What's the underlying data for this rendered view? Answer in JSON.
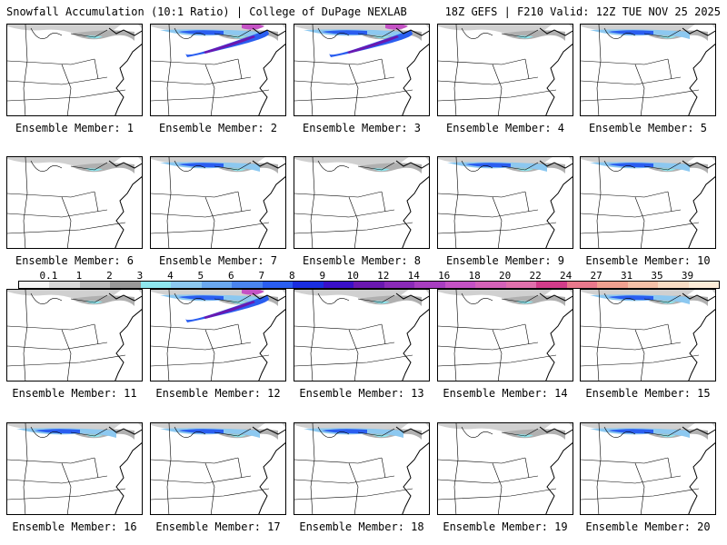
{
  "header": {
    "left": "Snowfall Accumulation (10:1 Ratio) | College of DuPage NEXLAB",
    "right": "18Z GEFS | F210 Valid: 12Z TUE NOV 25 2025"
  },
  "member_prefix": "Ensemble Member: ",
  "members": [
    {
      "label": "Ensemble Member: 1",
      "snow": "light"
    },
    {
      "label": "Ensemble Member: 2",
      "snow": "heavy"
    },
    {
      "label": "Ensemble Member: 3",
      "snow": "heavy"
    },
    {
      "label": "Ensemble Member: 4",
      "snow": "light"
    },
    {
      "label": "Ensemble Member: 5",
      "snow": "moderate"
    },
    {
      "label": "Ensemble Member: 6",
      "snow": "light"
    },
    {
      "label": "Ensemble Member: 7",
      "snow": "moderate"
    },
    {
      "label": "Ensemble Member: 8",
      "snow": "light"
    },
    {
      "label": "Ensemble Member: 9",
      "snow": "moderate"
    },
    {
      "label": "Ensemble Member: 10",
      "snow": "moderate"
    },
    {
      "label": "Ensemble Member: 11",
      "snow": "light"
    },
    {
      "label": "Ensemble Member: 12",
      "snow": "heavy"
    },
    {
      "label": "Ensemble Member: 13",
      "snow": "light"
    },
    {
      "label": "Ensemble Member: 14",
      "snow": "light"
    },
    {
      "label": "Ensemble Member: 15",
      "snow": "moderate"
    },
    {
      "label": "Ensemble Member: 16",
      "snow": "moderate"
    },
    {
      "label": "Ensemble Member: 17",
      "snow": "moderate"
    },
    {
      "label": "Ensemble Member: 18",
      "snow": "moderate"
    },
    {
      "label": "Ensemble Member: 19",
      "snow": "light"
    },
    {
      "label": "Ensemble Member: 20",
      "snow": "moderate"
    }
  ],
  "colorbar": {
    "ticks": [
      "0.1",
      "1",
      "2",
      "3",
      "4",
      "5",
      "6",
      "7",
      "8",
      "9",
      "10",
      "12",
      "14",
      "16",
      "18",
      "20",
      "22",
      "24",
      "27",
      "31",
      "35",
      "39"
    ],
    "colors": [
      "#f4f4f4",
      "#d8d8d8",
      "#b8b8b8",
      "#989898",
      "#8ee6ee",
      "#8cc8f0",
      "#6aa8f0",
      "#4a84ee",
      "#2a5ef0",
      "#1a2ee0",
      "#3a10c8",
      "#6a18b0",
      "#8a2ab8",
      "#a83ec0",
      "#c452c4",
      "#d462b8",
      "#e070ac",
      "#d23c8a",
      "#e8788c",
      "#f0a090",
      "#f4c0a8",
      "#f8dcc4",
      "#fcecd8"
    ]
  }
}
